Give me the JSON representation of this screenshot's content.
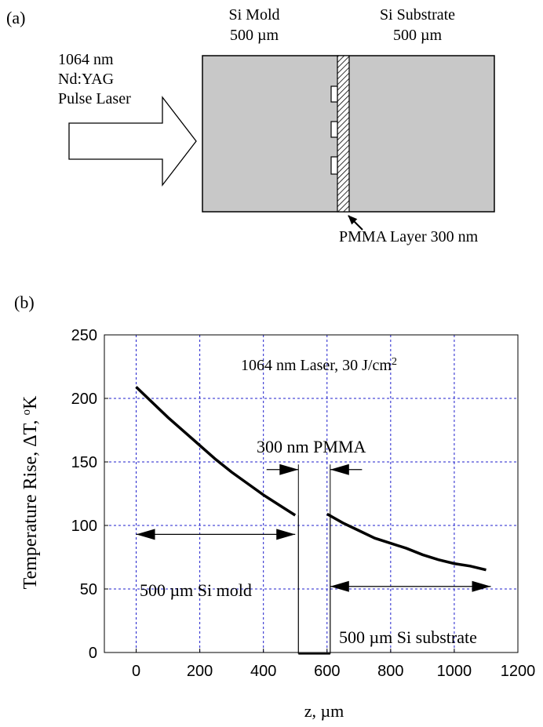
{
  "panel_a": {
    "label": "(a)",
    "laser_label": [
      "1064 nm",
      "Nd:YAG",
      "Pulse Laser"
    ],
    "mold_label": [
      "Si Mold",
      "500 µm"
    ],
    "substrate_label": [
      "Si Substrate",
      "500 µm"
    ],
    "pmma_label": "PMMA Layer  300 nm"
  },
  "panel_b": {
    "label": "(b)",
    "annotation_laser": "1064 nm Laser, 30 J/cm",
    "annotation_laser_sup": "2",
    "annotation_pmma": "300 nm PMMA",
    "annotation_mold": "500 µm Si mold",
    "annotation_substrate": "500 µm Si substrate"
  },
  "chart_data": {
    "type": "line",
    "xlabel": "z, µm",
    "ylabel_parts": [
      "Temperature Rise, ΔT, ",
      "o",
      "K"
    ],
    "xlim": [
      -100,
      1200
    ],
    "ylim": [
      0,
      250
    ],
    "xticks": [
      0,
      200,
      400,
      600,
      800,
      1000,
      1200
    ],
    "yticks": [
      0,
      50,
      100,
      150,
      200,
      250
    ],
    "grid": true,
    "series": [
      {
        "x": [
          0,
          50,
          100,
          150,
          200,
          250,
          300,
          350,
          400,
          450,
          500
        ],
        "y": [
          209,
          197,
          185,
          174,
          163,
          152,
          142,
          133,
          124,
          116,
          108
        ]
      },
      {
        "x": [
          600,
          1100
        ],
        "y": [
          0,
          0
        ]
      },
      {
        "x": [
          600,
          650,
          700,
          750,
          800,
          850,
          900,
          950,
          1000,
          1050,
          1100
        ],
        "y": [
          109,
          102,
          96,
          90,
          86,
          82,
          77,
          73,
          70,
          68,
          65
        ]
      }
    ],
    "pmma_gap_x": [
      510,
      610
    ]
  }
}
